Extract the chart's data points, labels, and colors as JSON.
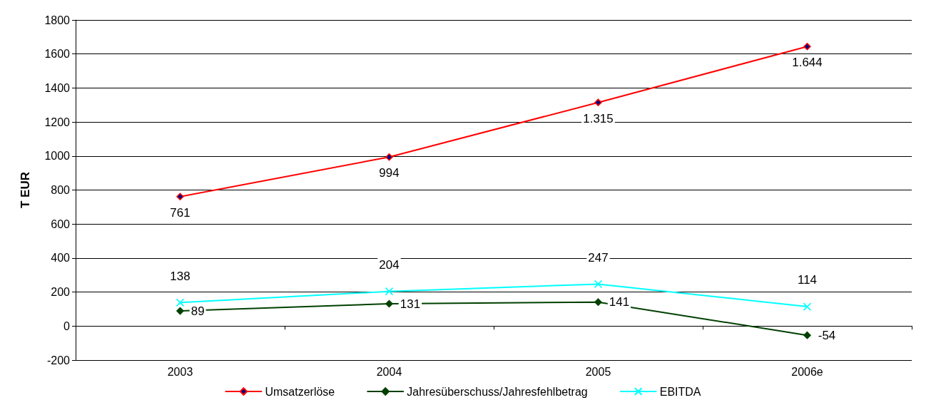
{
  "chart_data": {
    "type": "line",
    "ylabel": "T EUR",
    "categories": [
      "2003",
      "2004",
      "2005",
      "2006e"
    ],
    "series": [
      {
        "name": "Umsatzerlöse",
        "color": "#ff0000",
        "values": [
          761,
          994,
          1315,
          1644
        ],
        "value_labels": [
          "761",
          "994",
          "1.315",
          "1.644"
        ]
      },
      {
        "name": "Jahresüberschuss/Jahresfehlbetrag",
        "color": "#004000",
        "values": [
          89,
          131,
          141,
          -54
        ],
        "value_labels": [
          "89",
          "131",
          "141",
          "-54"
        ]
      },
      {
        "name": "EBITDA",
        "color": "#00ffff",
        "marker": "cross",
        "values": [
          138,
          204,
          247,
          114
        ],
        "value_labels": [
          "138",
          "204",
          "247",
          "114"
        ]
      }
    ],
    "ylim": [
      -200,
      1800
    ],
    "yticks": [
      -200,
      0,
      200,
      400,
      600,
      800,
      1000,
      1200,
      1400,
      1600,
      1800
    ],
    "grid": "y",
    "legend": "bottom",
    "marker": "diamond",
    "line_style": "solid"
  }
}
